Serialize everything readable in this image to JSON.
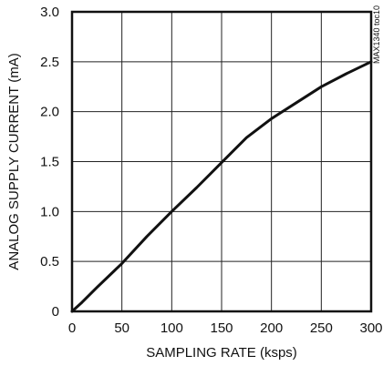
{
  "chart_data": {
    "type": "line",
    "title": "",
    "xlabel": "SAMPLING RATE (ksps)",
    "ylabel": "ANALOG SUPPLY CURRENT (mA)",
    "xlim": [
      0,
      300
    ],
    "ylim": [
      0,
      3.0
    ],
    "xticks": [
      0,
      50,
      100,
      150,
      200,
      250,
      300
    ],
    "yticks": [
      0,
      0.5,
      1.0,
      1.5,
      2.0,
      2.5,
      3.0
    ],
    "xtick_labels": [
      "0",
      "50",
      "100",
      "150",
      "200",
      "250",
      "300"
    ],
    "ytick_labels": [
      "0",
      "0.5",
      "1.0",
      "1.5",
      "2.0",
      "2.5",
      "3.0"
    ],
    "grid": true,
    "series": [
      {
        "x": [
          0,
          10,
          25,
          50,
          75,
          100,
          125,
          150,
          175,
          200,
          225,
          250,
          275,
          300
        ],
        "y": [
          0,
          0.09,
          0.24,
          0.48,
          0.75,
          1.0,
          1.24,
          1.49,
          1.74,
          1.93,
          2.09,
          2.25,
          2.38,
          2.5
        ]
      }
    ],
    "annotation": "MAX1340 toc10"
  }
}
